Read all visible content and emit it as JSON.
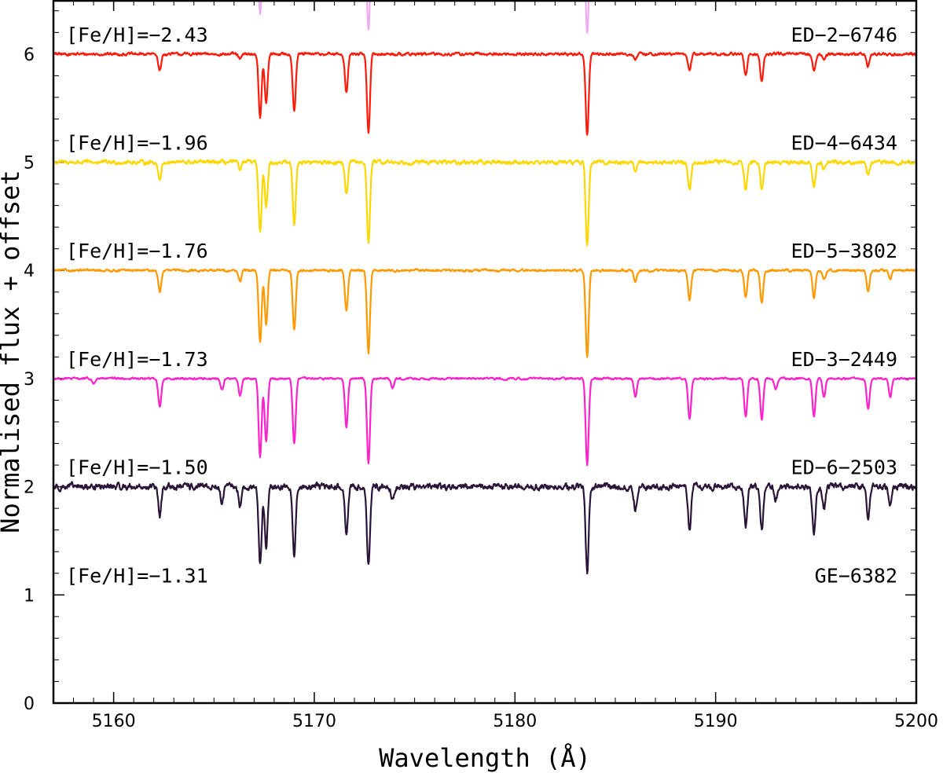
{
  "chart_data": {
    "type": "line",
    "xlabel": "Wavelength (Å)",
    "ylabel": "Normalised flux + offset",
    "xlim": [
      5157,
      5200
    ],
    "ylim": [
      0,
      6.5
    ],
    "x_ticks": [
      5160,
      5170,
      5180,
      5190,
      5200
    ],
    "x_tick_labels": [
      "5160",
      "5170",
      "5180",
      "5190",
      "5200"
    ],
    "y_ticks": [
      0,
      1,
      2,
      3,
      4,
      5,
      6
    ],
    "y_tick_labels": [
      "0",
      "1",
      "2",
      "3",
      "4",
      "5",
      "6"
    ],
    "grid": false,
    "legend": "none",
    "series": [
      {
        "name": "ED-2-6746",
        "annotation": "[Fe/H]=−2.43",
        "star": "ED−2−6746",
        "color": "#eeaaee",
        "offset": 6.0,
        "noise": 0.012,
        "lines": [
          [
            5162.3,
            0.05
          ],
          [
            5167.3,
            0.62
          ],
          [
            5167.5,
            0.35
          ],
          [
            5169.0,
            0.4
          ],
          [
            5171.6,
            0.22
          ],
          [
            5172.7,
            0.78
          ],
          [
            5183.6,
            0.8
          ],
          [
            5188.7,
            0.06
          ],
          [
            5191.5,
            0.07
          ],
          [
            5192.3,
            0.08
          ],
          [
            5194.9,
            0.07
          ]
        ]
      },
      {
        "name": "ED-4-6434",
        "annotation": "[Fe/H]=−1.96",
        "star": "ED−4−6434",
        "color": "#ff1a0a",
        "offset": 5.0,
        "noise": 0.01,
        "lines": [
          [
            5162.3,
            0.15
          ],
          [
            5166.3,
            0.05
          ],
          [
            5167.3,
            0.58
          ],
          [
            5167.6,
            0.45
          ],
          [
            5169.0,
            0.52
          ],
          [
            5171.6,
            0.35
          ],
          [
            5172.7,
            0.72
          ],
          [
            5183.6,
            0.75
          ],
          [
            5186.0,
            0.05
          ],
          [
            5188.7,
            0.15
          ],
          [
            5191.5,
            0.2
          ],
          [
            5192.3,
            0.26
          ],
          [
            5194.9,
            0.15
          ],
          [
            5195.4,
            0.06
          ],
          [
            5197.6,
            0.11
          ]
        ]
      },
      {
        "name": "ED-5-3802",
        "annotation": "[Fe/H]=−1.76",
        "star": "ED−5−3802",
        "color": "#ffd700",
        "offset": 4.0,
        "noise": 0.014,
        "lines": [
          [
            5162.3,
            0.16
          ],
          [
            5166.3,
            0.06
          ],
          [
            5167.3,
            0.65
          ],
          [
            5167.6,
            0.4
          ],
          [
            5169.0,
            0.57
          ],
          [
            5171.6,
            0.3
          ],
          [
            5172.7,
            0.74
          ],
          [
            5183.6,
            0.77
          ],
          [
            5186.0,
            0.08
          ],
          [
            5188.7,
            0.26
          ],
          [
            5191.5,
            0.25
          ],
          [
            5192.3,
            0.25
          ],
          [
            5194.9,
            0.22
          ],
          [
            5195.4,
            0.06
          ],
          [
            5197.6,
            0.12
          ]
        ]
      },
      {
        "name": "ED-3-2449",
        "annotation": "[Fe/H]=−1.73",
        "star": "ED−3−2449",
        "color": "#ff9900",
        "offset": 3.0,
        "noise": 0.008,
        "lines": [
          [
            5162.3,
            0.2
          ],
          [
            5166.3,
            0.1
          ],
          [
            5167.3,
            0.66
          ],
          [
            5167.6,
            0.5
          ],
          [
            5169.0,
            0.55
          ],
          [
            5171.6,
            0.37
          ],
          [
            5172.7,
            0.76
          ],
          [
            5183.6,
            0.8
          ],
          [
            5186.0,
            0.1
          ],
          [
            5188.7,
            0.28
          ],
          [
            5191.5,
            0.25
          ],
          [
            5192.3,
            0.3
          ],
          [
            5194.9,
            0.25
          ],
          [
            5195.4,
            0.08
          ],
          [
            5197.6,
            0.2
          ],
          [
            5198.7,
            0.08
          ]
        ]
      },
      {
        "name": "ED-6-2503",
        "annotation": "[Fe/H]=−1.50",
        "star": "ED−6−2503",
        "color": "#ff22cc",
        "offset": 2.0,
        "noise": 0.007,
        "lines": [
          [
            5159.0,
            0.05
          ],
          [
            5162.3,
            0.26
          ],
          [
            5165.4,
            0.1
          ],
          [
            5166.3,
            0.15
          ],
          [
            5167.3,
            0.72
          ],
          [
            5167.6,
            0.58
          ],
          [
            5169.0,
            0.6
          ],
          [
            5171.6,
            0.45
          ],
          [
            5172.7,
            0.78
          ],
          [
            5173.9,
            0.08
          ],
          [
            5183.6,
            0.8
          ],
          [
            5186.0,
            0.17
          ],
          [
            5188.7,
            0.38
          ],
          [
            5191.5,
            0.36
          ],
          [
            5192.3,
            0.38
          ],
          [
            5193.0,
            0.1
          ],
          [
            5194.9,
            0.35
          ],
          [
            5195.4,
            0.17
          ],
          [
            5197.6,
            0.28
          ],
          [
            5198.7,
            0.17
          ]
        ]
      },
      {
        "name": "GE-6382",
        "annotation": "[Fe/H]=−1.31",
        "star": "GE−6382",
        "color": "#2a1438",
        "offset": 1.0,
        "noise": 0.022,
        "lines": [
          [
            5162.3,
            0.28
          ],
          [
            5165.4,
            0.15
          ],
          [
            5166.3,
            0.18
          ],
          [
            5167.3,
            0.73
          ],
          [
            5167.6,
            0.55
          ],
          [
            5169.0,
            0.63
          ],
          [
            5171.6,
            0.45
          ],
          [
            5172.7,
            0.74
          ],
          [
            5173.9,
            0.1
          ],
          [
            5183.6,
            0.8
          ],
          [
            5186.0,
            0.2
          ],
          [
            5188.7,
            0.4
          ],
          [
            5191.5,
            0.35
          ],
          [
            5192.3,
            0.38
          ],
          [
            5193.0,
            0.12
          ],
          [
            5194.9,
            0.45
          ],
          [
            5195.4,
            0.2
          ],
          [
            5197.6,
            0.3
          ],
          [
            5198.7,
            0.2
          ]
        ]
      }
    ]
  }
}
